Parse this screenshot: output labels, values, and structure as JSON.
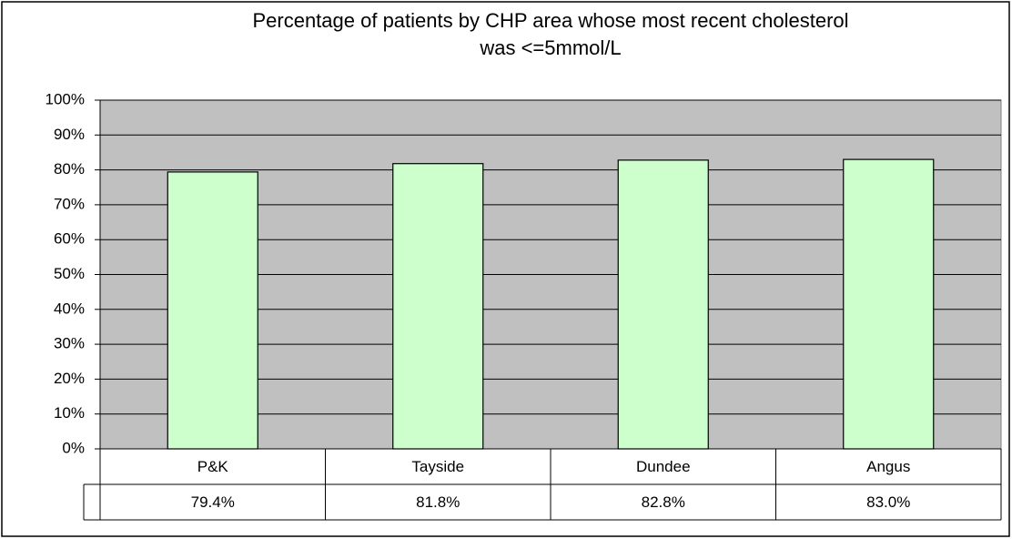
{
  "chart_data": {
    "type": "bar",
    "title": "Percentage of patients by CHP area whose most recent cholesterol\nwas <=5mmol/L",
    "categories": [
      "P&K",
      "Tayside",
      "Dundee",
      "Angus"
    ],
    "values": [
      79.4,
      81.8,
      82.8,
      83.0
    ],
    "value_labels": [
      "79.4%",
      "81.8%",
      "82.8%",
      "83.0%"
    ],
    "color": "#ccffcc",
    "ylim": [
      0,
      100
    ],
    "yticks": [
      {
        "value": 0,
        "label": "0%"
      },
      {
        "value": 10,
        "label": "10%"
      },
      {
        "value": 20,
        "label": "20%"
      },
      {
        "value": 30,
        "label": "30%"
      },
      {
        "value": 40,
        "label": "40%"
      },
      {
        "value": 50,
        "label": "50%"
      },
      {
        "value": 60,
        "label": "60%"
      },
      {
        "value": 70,
        "label": "70%"
      },
      {
        "value": 80,
        "label": "80%"
      },
      {
        "value": 90,
        "label": "90%"
      },
      {
        "value": 100,
        "label": "100%"
      }
    ],
    "grid": true
  }
}
